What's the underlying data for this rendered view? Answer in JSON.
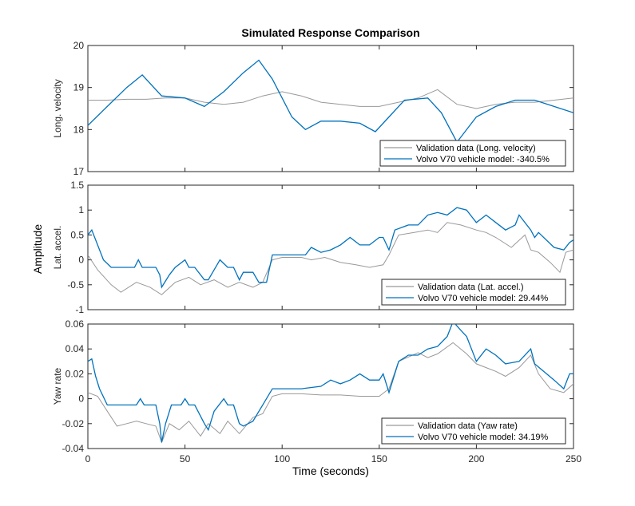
{
  "chart_data": {
    "type": "line",
    "title": "Simulated Response Comparison",
    "xlabel": "Time (seconds)",
    "common_ylabel": "Amplitude",
    "xlim": [
      0,
      250
    ],
    "xticks": [
      0,
      50,
      100,
      150,
      200,
      250
    ],
    "colors": {
      "validation": "#999999",
      "model": "#0072BD"
    },
    "panels": [
      {
        "ylabel": "Long. velocity",
        "ylim": [
          17,
          20
        ],
        "yticks": [
          "17",
          "18",
          "19",
          "20"
        ],
        "legend": [
          "Validation data (Long. velocity)",
          "Volvo V70 vehicle model: -340.5%"
        ],
        "series": [
          {
            "name": "Validation data (Long. velocity)",
            "x": [
              0,
              10,
              20,
              30,
              40,
              50,
              60,
              70,
              80,
              90,
              100,
              110,
              120,
              130,
              140,
              150,
              160,
              170,
              180,
              190,
              200,
              210,
              220,
              230,
              240,
              250
            ],
            "y": [
              18.7,
              18.7,
              18.72,
              18.72,
              18.75,
              18.75,
              18.65,
              18.6,
              18.65,
              18.8,
              18.9,
              18.8,
              18.65,
              18.6,
              18.55,
              18.55,
              18.65,
              18.75,
              18.95,
              18.6,
              18.5,
              18.6,
              18.65,
              18.65,
              18.7,
              18.75
            ]
          },
          {
            "name": "Volvo V70 vehicle model: -340.5%",
            "x": [
              0,
              10,
              20,
              28,
              38,
              50,
              60,
              70,
              80,
              88,
              95,
              105,
              112,
              120,
              130,
              140,
              148,
              155,
              163,
              175,
              182,
              190,
              200,
              210,
              220,
              230,
              240,
              250
            ],
            "y": [
              18.1,
              18.55,
              19.0,
              19.3,
              18.8,
              18.75,
              18.55,
              18.9,
              19.35,
              19.65,
              19.2,
              18.3,
              18.0,
              18.2,
              18.2,
              18.15,
              17.95,
              18.3,
              18.7,
              18.75,
              18.4,
              17.7,
              18.3,
              18.55,
              18.7,
              18.7,
              18.55,
              18.4
            ]
          }
        ]
      },
      {
        "ylabel": "Lat. accel.",
        "ylim": [
          -1,
          1.5
        ],
        "yticks": [
          "-1",
          "-0.5",
          "0",
          "0.5",
          "1",
          "1.5"
        ],
        "legend": [
          "Validation data (Lat. accel.)",
          "Volvo V70 vehicle model: 29.44%"
        ],
        "series": [
          {
            "name": "Validation data (Lat. accel.)",
            "x": [
              0,
              5,
              12,
              17,
              25,
              32,
              38,
              45,
              52,
              58,
              65,
              72,
              78,
              85,
              90,
              95,
              100,
              110,
              115,
              122,
              130,
              138,
              145,
              152,
              155,
              160,
              168,
              175,
              180,
              185,
              192,
              200,
              205,
              210,
              218,
              225,
              228,
              232,
              238,
              243,
              246,
              250
            ],
            "y": [
              0.1,
              -0.2,
              -0.5,
              -0.65,
              -0.45,
              -0.55,
              -0.7,
              -0.45,
              -0.35,
              -0.5,
              -0.4,
              -0.55,
              -0.45,
              -0.55,
              -0.45,
              0.0,
              0.05,
              0.05,
              0.0,
              0.05,
              -0.05,
              -0.1,
              -0.15,
              -0.1,
              0.1,
              0.5,
              0.55,
              0.6,
              0.55,
              0.75,
              0.7,
              0.6,
              0.55,
              0.45,
              0.25,
              0.5,
              0.2,
              0.15,
              -0.05,
              -0.25,
              0.15,
              0.2
            ]
          },
          {
            "name": "Volvo V70 vehicle model: 29.44%",
            "x": [
              0,
              2,
              5,
              8,
              12,
              18,
              24,
              26,
              28,
              35,
              37,
              38,
              42,
              45,
              50,
              52,
              55,
              60,
              62,
              65,
              68,
              72,
              75,
              78,
              80,
              85,
              88,
              90,
              92,
              95,
              100,
              112,
              115,
              120,
              125,
              130,
              135,
              140,
              145,
              150,
              152,
              155,
              158,
              165,
              170,
              175,
              180,
              185,
              190,
              195,
              198,
              200,
              205,
              210,
              215,
              220,
              222,
              228,
              230,
              232,
              240,
              245,
              248,
              250
            ],
            "y": [
              0.5,
              0.6,
              0.3,
              0.0,
              -0.15,
              -0.15,
              -0.15,
              0.0,
              -0.15,
              -0.15,
              -0.3,
              -0.55,
              -0.3,
              -0.15,
              0.0,
              -0.15,
              -0.15,
              -0.4,
              -0.4,
              -0.2,
              0.0,
              -0.15,
              -0.15,
              -0.4,
              -0.25,
              -0.25,
              -0.45,
              -0.45,
              -0.45,
              0.1,
              0.1,
              0.1,
              0.25,
              0.15,
              0.2,
              0.3,
              0.45,
              0.3,
              0.3,
              0.45,
              0.45,
              0.2,
              0.6,
              0.7,
              0.7,
              0.9,
              0.95,
              0.9,
              1.05,
              1.0,
              0.85,
              0.75,
              0.9,
              0.75,
              0.6,
              0.7,
              0.9,
              0.6,
              0.45,
              0.55,
              0.25,
              0.2,
              0.35,
              0.4
            ]
          }
        ]
      },
      {
        "ylabel": "Yaw rate",
        "ylim": [
          -0.04,
          0.06
        ],
        "yticks": [
          "-0.04",
          "-0.02",
          "0",
          "0.02",
          "0.04",
          "0.06"
        ],
        "legend": [
          "Validation data (Yaw rate)",
          "Volvo V70 vehicle model: 34.19%"
        ],
        "series": [
          {
            "name": "Validation data (Yaw rate)",
            "x": [
              0,
              5,
              10,
              15,
              20,
              25,
              30,
              35,
              38,
              42,
              47,
              52,
              58,
              62,
              68,
              72,
              78,
              85,
              90,
              95,
              100,
              110,
              120,
              130,
              140,
              150,
              155,
              160,
              170,
              175,
              180,
              188,
              195,
              200,
              205,
              210,
              215,
              222,
              228,
              232,
              238,
              245,
              250
            ],
            "y": [
              0.005,
              0.002,
              -0.01,
              -0.022,
              -0.02,
              -0.018,
              -0.02,
              -0.022,
              -0.035,
              -0.02,
              -0.025,
              -0.018,
              -0.03,
              -0.02,
              -0.028,
              -0.018,
              -0.028,
              -0.015,
              -0.012,
              0.002,
              0.004,
              0.004,
              0.003,
              0.003,
              0.002,
              0.002,
              0.008,
              0.03,
              0.037,
              0.033,
              0.036,
              0.045,
              0.036,
              0.028,
              0.025,
              0.022,
              0.018,
              0.025,
              0.035,
              0.02,
              0.008,
              0.005,
              0.012
            ]
          },
          {
            "name": "Volvo V70 vehicle model: 34.19%",
            "x": [
              0,
              2,
              4,
              6,
              10,
              15,
              20,
              25,
              27,
              29,
              35,
              37,
              38,
              40,
              43,
              48,
              50,
              52,
              55,
              60,
              62,
              65,
              70,
              72,
              75,
              78,
              80,
              85,
              90,
              95,
              100,
              110,
              120,
              125,
              130,
              135,
              140,
              145,
              150,
              152,
              155,
              160,
              165,
              170,
              175,
              180,
              185,
              188,
              192,
              195,
              198,
              200,
              205,
              210,
              215,
              222,
              228,
              230,
              240,
              245,
              248,
              250
            ],
            "y": [
              0.03,
              0.032,
              0.018,
              0.008,
              -0.005,
              -0.005,
              -0.005,
              -0.005,
              0.0,
              -0.005,
              -0.005,
              -0.02,
              -0.035,
              -0.02,
              -0.005,
              -0.005,
              0.0,
              -0.005,
              -0.005,
              -0.02,
              -0.025,
              -0.01,
              0.0,
              -0.005,
              -0.005,
              -0.02,
              -0.022,
              -0.018,
              -0.005,
              0.008,
              0.008,
              0.008,
              0.01,
              0.015,
              0.012,
              0.015,
              0.02,
              0.015,
              0.015,
              0.02,
              0.005,
              0.03,
              0.035,
              0.035,
              0.04,
              0.042,
              0.05,
              0.062,
              0.055,
              0.05,
              0.038,
              0.03,
              0.04,
              0.035,
              0.028,
              0.03,
              0.04,
              0.028,
              0.015,
              0.008,
              0.02,
              0.02
            ]
          }
        ]
      }
    ]
  }
}
